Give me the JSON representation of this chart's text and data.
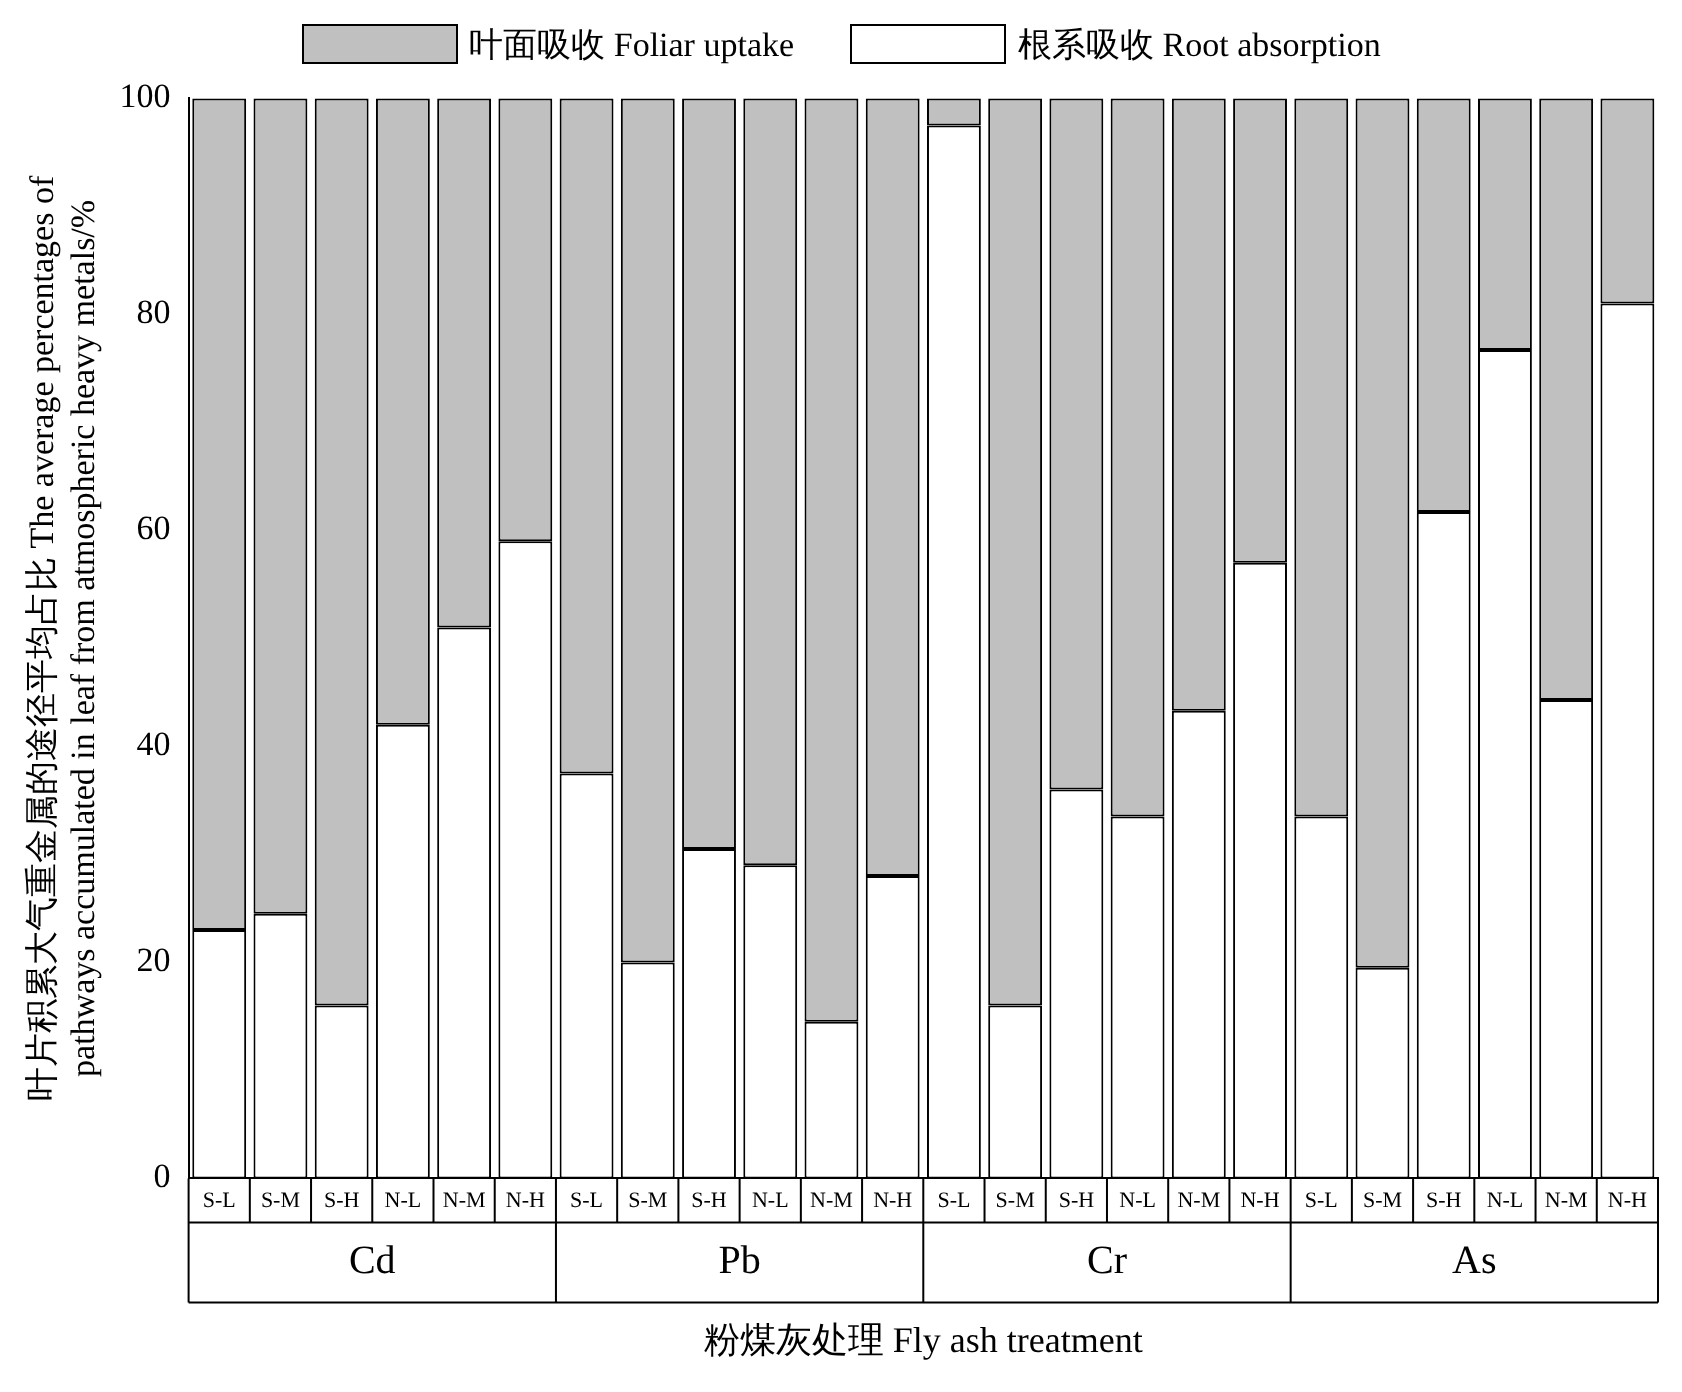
{
  "chart_data": {
    "type": "bar",
    "stacked": true,
    "xlabel": "粉煤灰处理 Fly ash treatment",
    "ylabel": "叶片积累大气重金属的途径平均占比 The average percentages of pathways accumulated in leaf from atmospheric heavy metals/%",
    "categories": [
      "S-L",
      "S-M",
      "S-H",
      "N-L",
      "N-M",
      "N-H",
      "S-L",
      "S-M",
      "S-H",
      "N-L",
      "N-M",
      "N-H",
      "S-L",
      "S-M",
      "S-H",
      "N-L",
      "N-M",
      "N-H",
      "S-L",
      "S-M",
      "S-H",
      "N-L",
      "N-M",
      "N-H"
    ],
    "series": [
      {
        "name": "根系吸收 Root absorption",
        "color": "#ffffff",
        "values": [
          23,
          24.5,
          16,
          42,
          51,
          59,
          37.5,
          20,
          30.5,
          29,
          14.5,
          28,
          97.5,
          16,
          36,
          33.5,
          43.3,
          57,
          33.5,
          19.5,
          61.7,
          76.7,
          44.3,
          81
        ]
      },
      {
        "name": "叶面吸收 Foliar uptake",
        "color": "#c0c0c0",
        "values": [
          77,
          75.5,
          84,
          58,
          49,
          41,
          62.5,
          80,
          69.5,
          71,
          85.5,
          72,
          2.5,
          84,
          64,
          66.5,
          56.7,
          43,
          66.5,
          80.5,
          38.3,
          23.3,
          55.7,
          19
        ]
      }
    ],
    "annotations": [
      "Cd",
      "Pb",
      "Cr",
      "As"
    ],
    "ylim": [
      0,
      100
    ],
    "yticks": [
      0,
      20,
      40,
      60,
      80,
      100
    ],
    "grid": false,
    "legend": "top"
  }
}
